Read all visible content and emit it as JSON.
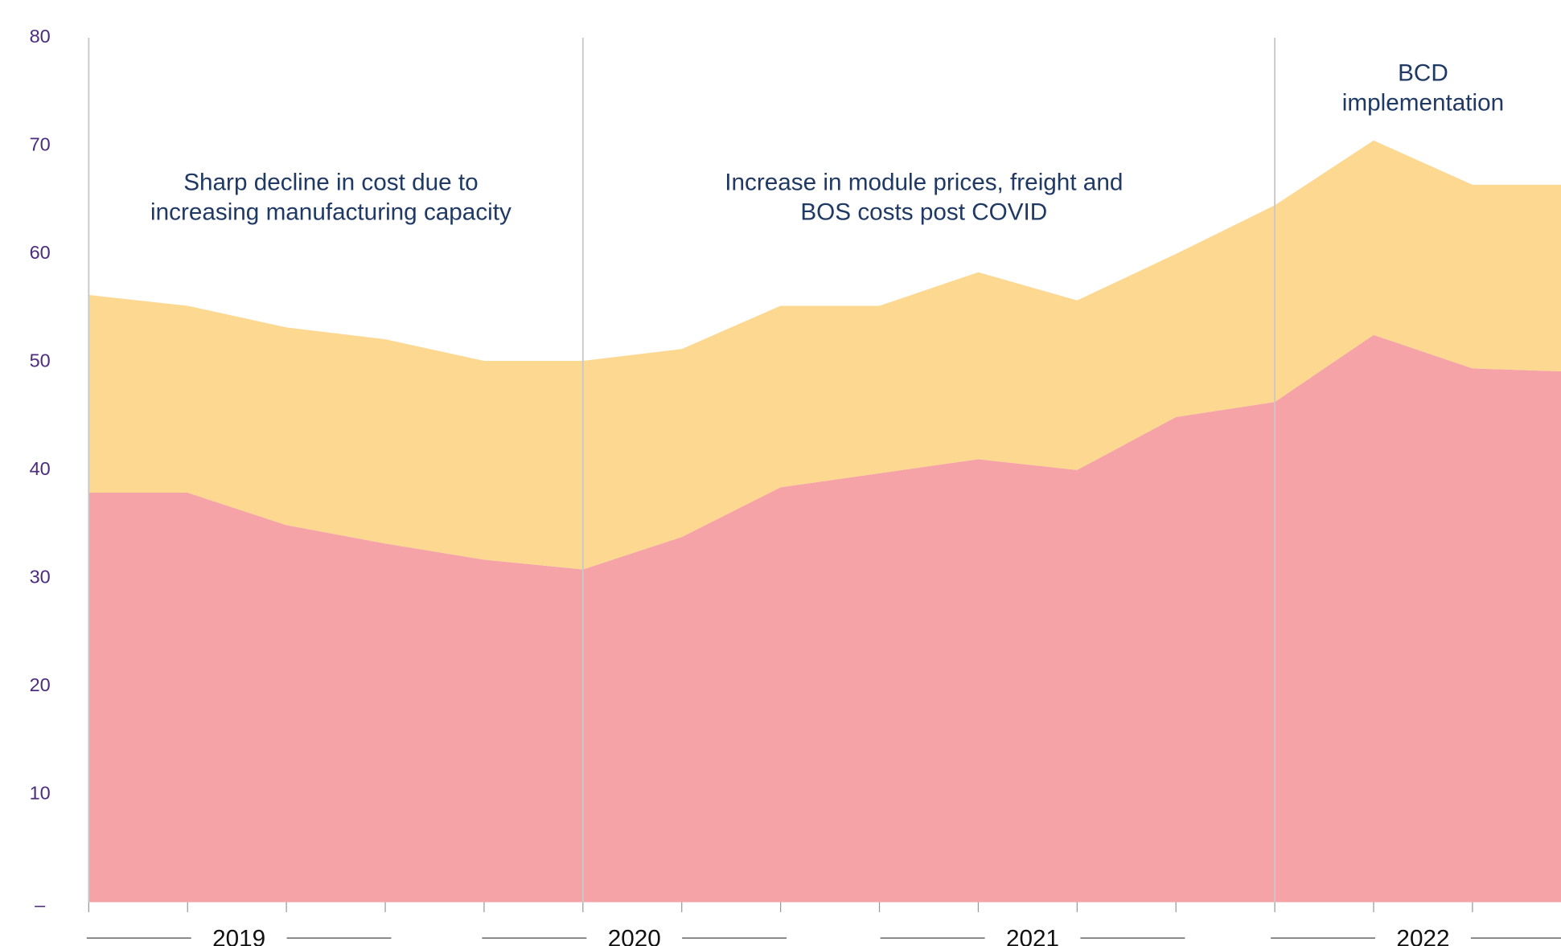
{
  "chart_data": {
    "type": "stacked-area",
    "x": [
      0,
      1,
      2,
      3,
      4,
      5,
      6,
      7,
      8,
      9,
      10,
      11,
      12,
      13,
      14,
      15
    ],
    "xlim": [
      0,
      15
    ],
    "series": [
      {
        "color": "#f6a3a8",
        "values": [
          37.9,
          37.9,
          34.9,
          33.2,
          31.7,
          30.8,
          33.8,
          38.4,
          39.7,
          41.0,
          40.0,
          44.9,
          46.3,
          52.5,
          49.4,
          49.1
        ]
      },
      {
        "color": "#fdd891",
        "values": [
          18.3,
          17.3,
          18.3,
          18.9,
          18.4,
          19.3,
          17.4,
          16.8,
          15.5,
          17.3,
          15.7,
          15.1,
          18.2,
          18.0,
          17.0,
          17.3
        ]
      }
    ],
    "ylim": [
      0,
      80
    ],
    "yticks": [
      {
        "value": 0,
        "label": "–"
      },
      10,
      20,
      30,
      40,
      50,
      60,
      70,
      80
    ],
    "dividers": [
      0,
      5,
      12
    ],
    "annotations": [
      {
        "x": 2.45,
        "y": 66.5,
        "lines": [
          "Sharp decline in cost due to",
          "increasing manufacturing capacity"
        ]
      },
      {
        "x": 8.45,
        "y": 66.5,
        "lines": [
          "Increase in module prices, freight and",
          "BOS costs post COVID"
        ]
      },
      {
        "x": 13.5,
        "y": 76.6,
        "lines": [
          "BCD",
          "implementation"
        ]
      }
    ],
    "year_labels": [
      {
        "x": 1.52,
        "label": "2019"
      },
      {
        "x": 5.52,
        "label": "2020"
      },
      {
        "x": 9.55,
        "label": "2021"
      },
      {
        "x": 13.5,
        "label": "2022"
      }
    ]
  }
}
